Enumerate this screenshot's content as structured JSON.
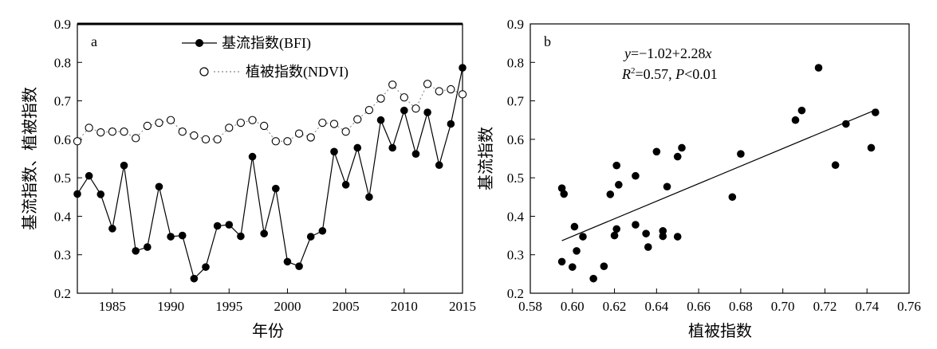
{
  "chart_data": [
    {
      "type": "line",
      "panel_label": "a",
      "xlabel": "年份",
      "ylabel": "基流指数、植被指数",
      "xlim": [
        1982,
        2015
      ],
      "ylim": [
        0.2,
        0.9
      ],
      "xticks": [
        1985,
        1990,
        1995,
        2000,
        2005,
        2010,
        2015
      ],
      "yticks": [
        0.2,
        0.3,
        0.4,
        0.5,
        0.6,
        0.7,
        0.8,
        0.9
      ],
      "ytick_labels": [
        "0.2",
        "0.3",
        "0.4",
        "0.5",
        "0.6",
        "0.7",
        "0.8",
        "0.9"
      ],
      "x": [
        1982,
        1983,
        1984,
        1985,
        1986,
        1987,
        1988,
        1989,
        1990,
        1991,
        1992,
        1993,
        1994,
        1995,
        1996,
        1997,
        1998,
        1999,
        2000,
        2001,
        2002,
        2003,
        2004,
        2005,
        2006,
        2007,
        2008,
        2009,
        2010,
        2011,
        2012,
        2013,
        2014,
        2015
      ],
      "series": [
        {
          "name": "基流指数(BFI)",
          "marker": "filled-circle",
          "line": "solid",
          "color": "#000000",
          "values": [
            0.458,
            0.505,
            0.457,
            0.368,
            0.532,
            0.31,
            0.32,
            0.477,
            0.347,
            0.35,
            0.238,
            0.268,
            0.375,
            0.378,
            0.348,
            0.555,
            0.355,
            0.472,
            0.282,
            0.27,
            0.347,
            0.362,
            0.568,
            0.482,
            0.578,
            0.45,
            0.65,
            0.578,
            0.675,
            0.562,
            0.67,
            0.533,
            0.64,
            0.786
          ]
        },
        {
          "name": "植被指数(NDVI)",
          "marker": "open-circle",
          "line": "dotted",
          "color": "#888888",
          "values": [
            0.595,
            0.63,
            0.618,
            0.62,
            0.62,
            0.603,
            0.635,
            0.643,
            0.65,
            0.62,
            0.61,
            0.6,
            0.6,
            0.63,
            0.643,
            0.65,
            0.635,
            0.595,
            0.595,
            0.615,
            0.605,
            0.643,
            0.64,
            0.62,
            0.652,
            0.676,
            0.706,
            0.742,
            0.709,
            0.68,
            0.744,
            0.725,
            0.73,
            0.717
          ]
        }
      ],
      "legend_position": "top-center"
    },
    {
      "type": "scatter",
      "panel_label": "b",
      "xlabel": "植被指数",
      "ylabel": "基流指数",
      "xlim": [
        0.58,
        0.76
      ],
      "ylim": [
        0.2,
        0.9
      ],
      "xticks": [
        0.58,
        0.6,
        0.62,
        0.64,
        0.66,
        0.68,
        0.7,
        0.72,
        0.74,
        0.76
      ],
      "xtick_labels": [
        "0.58",
        "0.60",
        "0.62",
        "0.64",
        "0.66",
        "0.68",
        "0.70",
        "0.72",
        "0.74",
        "0.76"
      ],
      "yticks": [
        0.2,
        0.3,
        0.4,
        0.5,
        0.6,
        0.7,
        0.8,
        0.9
      ],
      "ytick_labels": [
        "0.2",
        "0.3",
        "0.4",
        "0.5",
        "0.6",
        "0.7",
        "0.8",
        "0.9"
      ],
      "points": [
        [
          0.595,
          0.473
        ],
        [
          0.596,
          0.458
        ],
        [
          0.595,
          0.282
        ],
        [
          0.6,
          0.268
        ],
        [
          0.601,
          0.373
        ],
        [
          0.602,
          0.31
        ],
        [
          0.605,
          0.347
        ],
        [
          0.61,
          0.238
        ],
        [
          0.615,
          0.27
        ],
        [
          0.618,
          0.457
        ],
        [
          0.62,
          0.35
        ],
        [
          0.621,
          0.367
        ],
        [
          0.621,
          0.532
        ],
        [
          0.622,
          0.482
        ],
        [
          0.63,
          0.505
        ],
        [
          0.63,
          0.378
        ],
        [
          0.635,
          0.355
        ],
        [
          0.636,
          0.32
        ],
        [
          0.64,
          0.568
        ],
        [
          0.643,
          0.348
        ],
        [
          0.643,
          0.362
        ],
        [
          0.645,
          0.477
        ],
        [
          0.65,
          0.555
        ],
        [
          0.65,
          0.347
        ],
        [
          0.652,
          0.578
        ],
        [
          0.676,
          0.45
        ],
        [
          0.68,
          0.562
        ],
        [
          0.706,
          0.65
        ],
        [
          0.709,
          0.675
        ],
        [
          0.717,
          0.786
        ],
        [
          0.725,
          0.533
        ],
        [
          0.73,
          0.64
        ],
        [
          0.742,
          0.578
        ],
        [
          0.744,
          0.67
        ]
      ],
      "regression": {
        "intercept": -1.02,
        "slope": 2.28,
        "x_range": [
          0.595,
          0.745
        ]
      },
      "annotation": {
        "eq_y": "y",
        "eq_rest": "=−1.02+2.28",
        "eq_x": "x",
        "r_part": "R",
        "r_sup": "2",
        "r_rest": "=0.57, ",
        "p_part": "P",
        "p_rest": "<0.01"
      }
    }
  ]
}
